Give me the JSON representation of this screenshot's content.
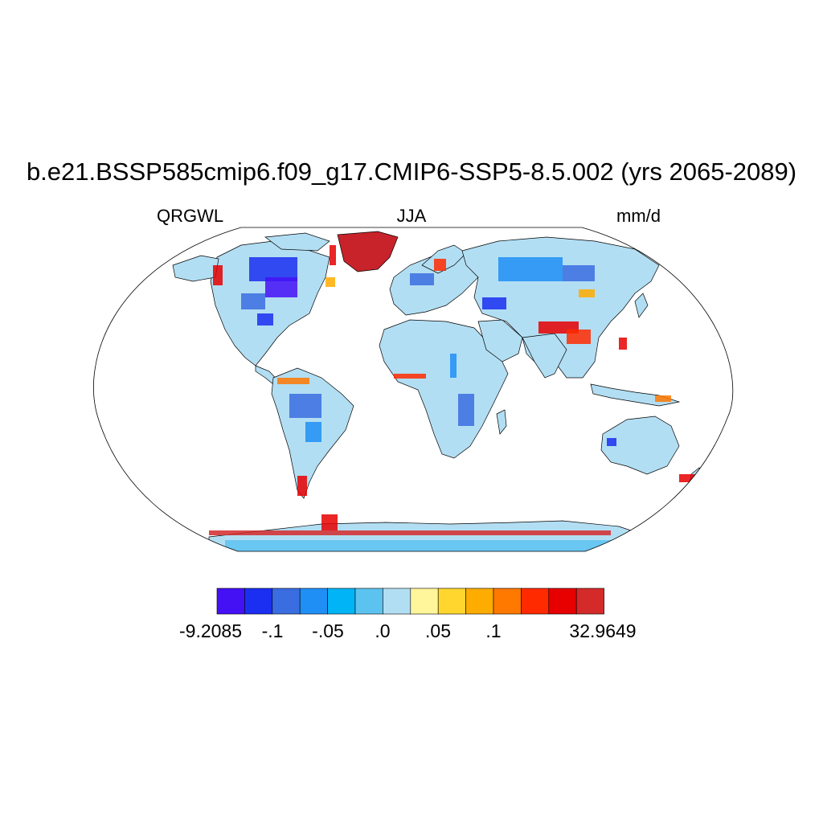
{
  "title": "b.e21.BSSP585cmip6.f09_g17.CMIP6-SSP5-8.5.002 (yrs 2065-2089)",
  "variable": "QRGWL",
  "season": "JJA",
  "units": "mm/d",
  "colorbar": {
    "colors": [
      "#4410f4",
      "#1a2ff0",
      "#3a6de0",
      "#1f8ff5",
      "#00b4f6",
      "#5cc3f0",
      "#b2def3",
      "#fff59a",
      "#ffd62e",
      "#ffac00",
      "#ff7800",
      "#ff2a00",
      "#e60000",
      "#d42a2a"
    ],
    "labels": [
      "-9.2085",
      "-.1",
      "-.05",
      ".0",
      ".05",
      ".1",
      "32.9649"
    ]
  },
  "map_colors": {
    "background_land": "#b2def3",
    "coastline": "#000000",
    "ocean": "#ffffff",
    "frame": "#000000"
  }
}
